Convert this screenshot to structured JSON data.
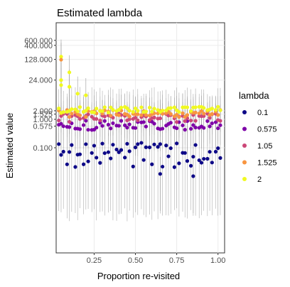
{
  "chart_data": {
    "type": "scatter",
    "title": "Estimated lambda",
    "xlabel": "Proportion re-visited",
    "ylabel": "Estimated value",
    "x_scale": "linear",
    "y_scale": "log",
    "xlim": [
      0.02,
      1.04
    ],
    "ylim": [
      2e-05,
      2500
    ],
    "x_ticks": [
      0.25,
      0.5,
      0.75,
      1.0
    ],
    "x_tick_labels": [
      "0.25",
      "0.50",
      "0.75",
      "1.00"
    ],
    "y_ticks": [
      0.1,
      0.575,
      1.0,
      1.525,
      2.0,
      24,
      128,
      400,
      600
    ],
    "y_tick_labels": [
      "0.100",
      "0.575",
      "1.000",
      "1.525",
      "2.000",
      "24.000",
      "128.000",
      "400.000",
      "600.000"
    ],
    "grid": true,
    "legend": {
      "title": "lambda",
      "position": "right",
      "entries": [
        "0.1",
        "0.575",
        "1.05",
        "1.525",
        "2"
      ]
    },
    "colors": {
      "0.1": "#0d0887",
      "0.575": "#7e03a8",
      "1.05": "#cc4778",
      "1.525": "#f89540",
      "2": "#f0f921"
    },
    "x_values": [
      0.05,
      0.1,
      0.15,
      0.2,
      0.25,
      0.3,
      0.35,
      0.4,
      0.45,
      0.5,
      0.55,
      0.6,
      0.65,
      0.7,
      0.75,
      0.8,
      0.85,
      0.9,
      0.95,
      1.0
    ],
    "series": [
      {
        "name": "0.1",
        "true_value": 0.1,
        "y_range": [
          0.02,
          0.15
        ],
        "interval": [
          0.0005,
          0.5
        ]
      },
      {
        "name": "0.575",
        "true_value": 0.575,
        "y_range": [
          0.4,
          0.9
        ],
        "interval": [
          0.1,
          2.5
        ]
      },
      {
        "name": "1.05",
        "true_value": 1.05,
        "y_range": [
          0.8,
          1.6
        ],
        "interval": [
          0.3,
          4
        ]
      },
      {
        "name": "1.525",
        "true_value": 1.525,
        "y_range": [
          1.2,
          2.2
        ],
        "interval": [
          0.5,
          6
        ]
      },
      {
        "name": "2",
        "true_value": 2.0,
        "y_range": [
          1.7,
          2.8
        ],
        "interval": [
          0.8,
          10
        ]
      }
    ],
    "extreme_points": [
      {
        "x": 0.05,
        "y": 160,
        "series": "2"
      },
      {
        "x": 0.05,
        "y": 125,
        "series": "1.525"
      },
      {
        "x": 0.05,
        "y": 24,
        "series": "2"
      },
      {
        "x": 0.05,
        "y": 16,
        "series": "2"
      },
      {
        "x": 0.1,
        "y": 45,
        "series": "2"
      },
      {
        "x": 0.1,
        "y": 14,
        "series": "2"
      },
      {
        "x": 0.15,
        "y": 8,
        "series": "2"
      },
      {
        "x": 0.2,
        "y": 7,
        "series": "2"
      },
      {
        "x": 0.65,
        "y": 0.012,
        "series": "0.1"
      },
      {
        "x": 0.85,
        "y": 0.01,
        "series": "0.1"
      }
    ]
  }
}
